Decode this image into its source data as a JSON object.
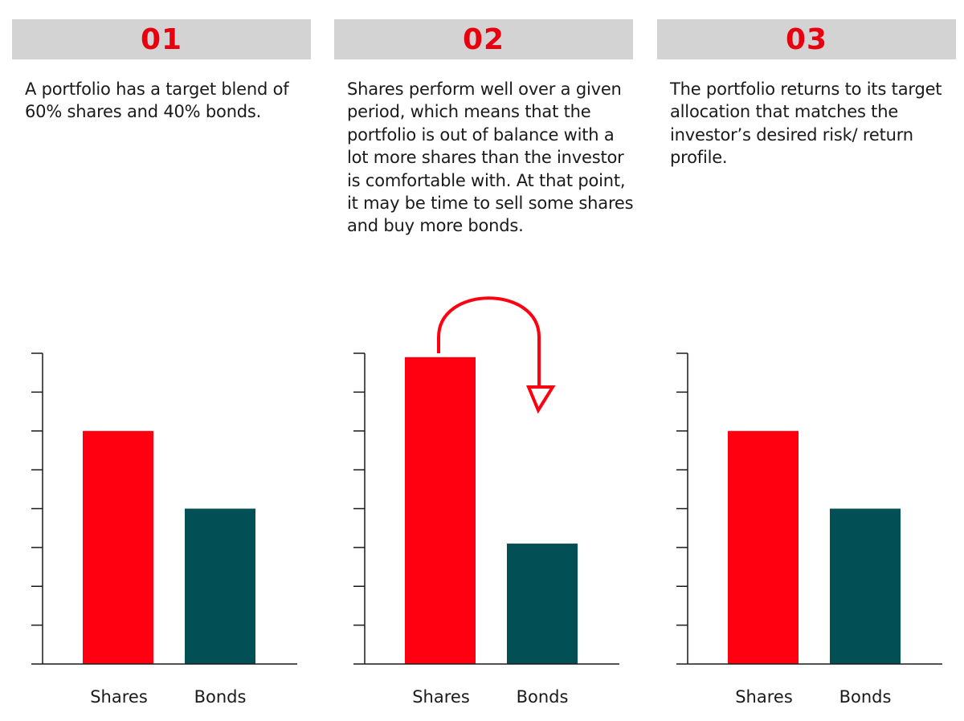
{
  "colors": {
    "header_bg": "#d3d3d3",
    "accent": "#e8000f",
    "shares": "#ff0010",
    "bonds": "#034f56",
    "axis": "#1a1a1a"
  },
  "steps": [
    {
      "number": "01",
      "text": "A portfolio has a target blend of 60% shares and 40% bonds."
    },
    {
      "number": "02",
      "text": "Shares perform well over a given period, which means that the portfolio is out of balance with a lot more shares than the investor is comfortable with. At that point, it may be time to sell some shares and buy more bonds."
    },
    {
      "number": "03",
      "text": "The portfolio returns to its target allocation that matches the investor’s desired risk/ return profile."
    }
  ],
  "chart_data": [
    {
      "type": "bar",
      "categories": [
        "Shares",
        "Bonds"
      ],
      "values": [
        60,
        40
      ],
      "ylim": [
        0,
        80
      ],
      "grid": false,
      "y_tick_count": 8
    },
    {
      "type": "bar",
      "categories": [
        "Shares",
        "Bonds"
      ],
      "values": [
        79,
        31
      ],
      "ylim": [
        0,
        80
      ],
      "grid": false,
      "y_tick_count": 8,
      "annotation": "arrow-from-shares-to-bonds"
    },
    {
      "type": "bar",
      "categories": [
        "Shares",
        "Bonds"
      ],
      "values": [
        60,
        40
      ],
      "ylim": [
        0,
        80
      ],
      "grid": false,
      "y_tick_count": 8
    }
  ]
}
